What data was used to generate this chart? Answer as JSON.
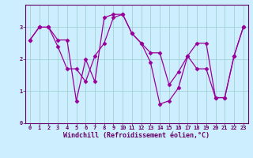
{
  "title": "",
  "xlabel": "Windchill (Refroidissement éolien,°C)",
  "ylabel": "",
  "bg_color": "#cceeff",
  "line_color": "#990099",
  "marker": "D",
  "markersize": 2.5,
  "linewidth": 0.9,
  "series": [
    [
      2.6,
      3.0,
      3.0,
      2.6,
      2.6,
      0.7,
      2.0,
      1.3,
      3.3,
      3.4,
      3.4,
      2.8,
      2.5,
      1.9,
      0.6,
      0.7,
      1.1,
      2.1,
      1.7,
      1.7,
      0.8,
      0.8,
      2.1,
      3.0
    ],
    [
      2.6,
      3.0,
      3.0,
      2.4,
      1.7,
      1.7,
      1.3,
      2.1,
      2.5,
      3.3,
      3.4,
      2.8,
      2.5,
      2.2,
      2.2,
      1.2,
      1.6,
      2.1,
      2.5,
      2.5,
      0.8,
      0.8,
      2.1,
      3.0
    ]
  ],
  "xlim": [
    -0.5,
    23.5
  ],
  "ylim": [
    0,
    3.7
  ],
  "yticks": [
    0,
    1,
    2,
    3
  ],
  "xticks": [
    0,
    1,
    2,
    3,
    4,
    5,
    6,
    7,
    8,
    9,
    10,
    11,
    12,
    13,
    14,
    15,
    16,
    17,
    18,
    19,
    20,
    21,
    22,
    23
  ],
  "grid_color": "#99cccc",
  "tick_fontsize": 5.0,
  "xlabel_fontsize": 6.0
}
